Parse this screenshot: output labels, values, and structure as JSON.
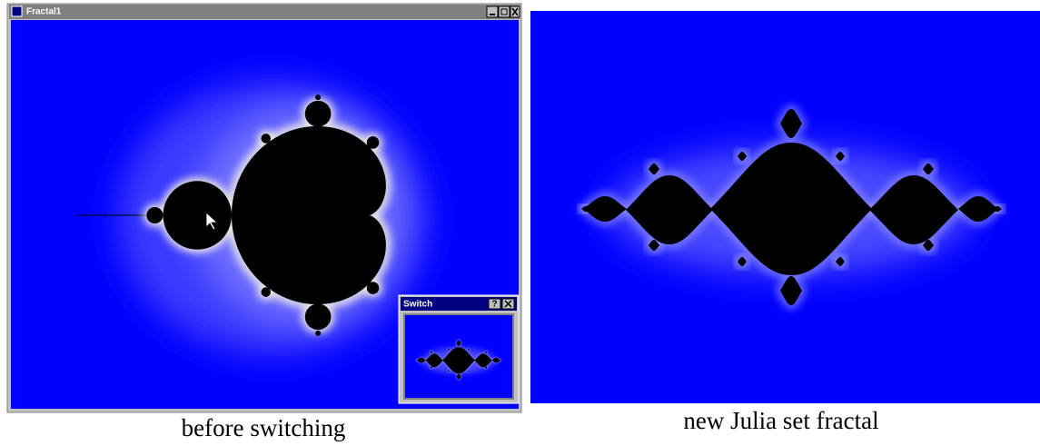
{
  "left_window": {
    "title": "Fractal1"
  },
  "switch_dialog": {
    "title": "Switch",
    "help_button": "?"
  },
  "captions": [
    "before switching",
    "new Julia set fractal"
  ]
}
